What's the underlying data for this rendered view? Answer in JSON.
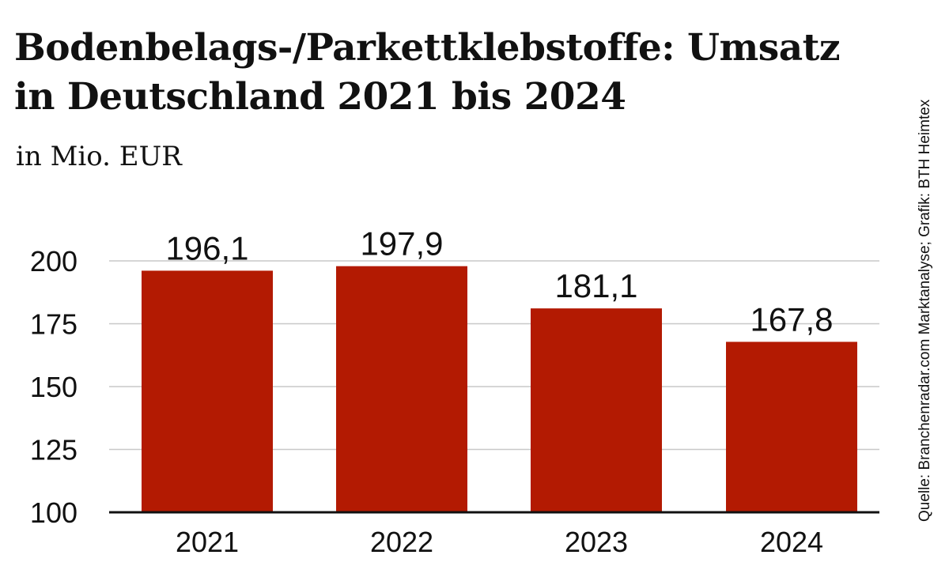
{
  "header": {
    "title": "Bodenbelags-/Parkettklebstoffe: Umsatz in Deutschland 2021 bis 2024",
    "subtitle": "in Mio. EUR"
  },
  "source": "Quelle: Branchenradar.com Marktanalyse; Grafik: BTH Heimtex",
  "colors": {
    "bar": "#b31a02",
    "grid": "#c8c8c8",
    "baseline": "#111111",
    "text": "#111111"
  },
  "chart_data": {
    "type": "bar",
    "title": "Bodenbelags-/Parkettklebstoffe: Umsatz in Deutschland 2021 bis 2024",
    "subtitle": "in Mio. EUR",
    "categories": [
      "2021",
      "2022",
      "2023",
      "2024"
    ],
    "values": [
      196.1,
      197.9,
      181.1,
      167.8
    ],
    "value_labels": [
      "196,1",
      "197,9",
      "181,1",
      "167,8"
    ],
    "yticks": [
      100,
      125,
      150,
      175,
      200
    ],
    "ylim": [
      100,
      200
    ],
    "grid": true,
    "legend": "none"
  }
}
